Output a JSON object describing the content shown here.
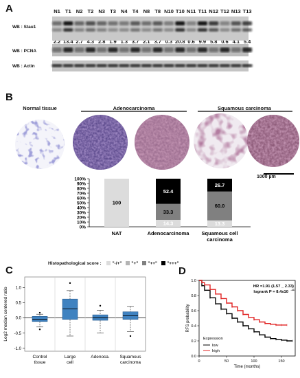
{
  "panels": {
    "a": "A",
    "b": "B",
    "c": "C",
    "d": "D"
  },
  "panel_a": {
    "lanes": [
      "N1",
      "T1",
      "N2",
      "T2",
      "N3",
      "T3",
      "N4",
      "T4",
      "N8",
      "T8",
      "N10",
      "T10",
      "N11",
      "T11",
      "N12",
      "T12",
      "N13",
      "T13"
    ],
    "ratios": [
      "2.2",
      "13.4",
      "2.7",
      "4.3",
      "2.8",
      "1.9",
      "1.3",
      "3.7",
      "2.1",
      "3.7",
      "0.3",
      "20.8",
      "0.6",
      "9.9",
      "5.8",
      "0.6",
      "4.1",
      "5.4"
    ],
    "blots": [
      "WB : Stau1",
      "WB : PCNA",
      "WB : Actin"
    ]
  },
  "panel_b": {
    "sections": {
      "normal": "Normal tissue",
      "adeno": "Adenocarcinoma",
      "squamous": "Squamous carcinoma"
    },
    "scale_bar": "1000 µm",
    "chart_data": {
      "type": "bar",
      "stacked": true,
      "categories": [
        "NAT",
        "Adenocarcinoma",
        "Squamous cell\ncarcinoma"
      ],
      "series": [
        {
          "name": "\"-/+\"",
          "values": [
            100,
            14.3,
            13.3
          ],
          "color": "#dcdcdc"
        },
        {
          "name": "\"+\"",
          "values": [
            0,
            0,
            0
          ],
          "color": "#b4b4b4"
        },
        {
          "name": "\"++\"",
          "values": [
            0,
            33.3,
            60.0
          ],
          "color": "#808080"
        },
        {
          "name": "\"+++\"",
          "values": [
            0,
            52.4,
            26.7
          ],
          "color": "#000000"
        }
      ],
      "value_labels": [
        [
          "100"
        ],
        [
          "14.3",
          "33.3",
          "52.4"
        ],
        [
          "13.3",
          "60.0",
          "26.7"
        ]
      ],
      "yticks": [
        "0%",
        "10%",
        "20%",
        "30%",
        "40%",
        "50%",
        "60%",
        "70%",
        "80%",
        "90%",
        "100%"
      ],
      "ylim": [
        0,
        100
      ],
      "legend_title": "Histopathological score :"
    }
  },
  "panel_c": {
    "chart_data": {
      "type": "boxplot",
      "categories": [
        "Control\ntissue",
        "Large\ncell",
        "Adenoca.",
        "Squamous\ncarcinoma"
      ],
      "boxes": [
        {
          "min": -0.3,
          "q1": -0.12,
          "median": -0.05,
          "q3": 0.05,
          "max": 0.12,
          "outliers": [
            0.17,
            -0.38
          ]
        },
        {
          "min": -0.6,
          "q1": -0.05,
          "median": 0.3,
          "q3": 0.62,
          "max": 0.9,
          "outliers": [
            1.15
          ]
        },
        {
          "min": -0.5,
          "q1": -0.08,
          "median": 0.0,
          "q3": 0.1,
          "max": 0.25,
          "outliers": [
            0.4
          ]
        },
        {
          "min": -0.45,
          "q1": -0.05,
          "median": 0.07,
          "q3": 0.2,
          "max": 0.38,
          "outliers": [
            -0.6
          ]
        }
      ],
      "yticks": [
        "-1.0",
        "-0.5",
        "0.0",
        "0.5",
        "1.0"
      ],
      "ylim": [
        -1.1,
        1.35
      ],
      "ylabel": "Log2 median centered ratio"
    }
  },
  "panel_d": {
    "chart_data": {
      "type": "line",
      "series": [
        {
          "name": "low",
          "color": "#000000",
          "x": [
            0,
            5,
            10,
            20,
            30,
            40,
            50,
            60,
            70,
            80,
            90,
            100,
            110,
            120,
            130,
            140,
            150,
            160,
            170
          ],
          "y": [
            1.0,
            0.93,
            0.87,
            0.77,
            0.69,
            0.62,
            0.56,
            0.5,
            0.45,
            0.4,
            0.36,
            0.32,
            0.28,
            0.25,
            0.23,
            0.22,
            0.21,
            0.2,
            0.2
          ]
        },
        {
          "name": "high",
          "color": "#e02020",
          "x": [
            0,
            5,
            10,
            20,
            30,
            40,
            50,
            60,
            70,
            80,
            90,
            100,
            110,
            120,
            130,
            140,
            150,
            160
          ],
          "y": [
            1.0,
            0.97,
            0.94,
            0.88,
            0.82,
            0.76,
            0.7,
            0.65,
            0.6,
            0.55,
            0.51,
            0.48,
            0.45,
            0.43,
            0.42,
            0.41,
            0.41,
            0.41
          ]
        }
      ],
      "xticks": [
        "0",
        "50",
        "100",
        "150"
      ],
      "xlim": [
        0,
        175
      ],
      "yticks": [
        "0.0",
        "0.2",
        "0.4",
        "0.6",
        "0.8",
        "1.0"
      ],
      "ylim": [
        0,
        1.0
      ],
      "xlabel": "Time (months)",
      "ylabel": "RFS probability",
      "hr": "HR =1.91 (1.57 _ 2.33)",
      "logrank": "logrank  P = 8.4x10",
      "logrank_exp": "-11",
      "legend_title": "Expression"
    }
  }
}
